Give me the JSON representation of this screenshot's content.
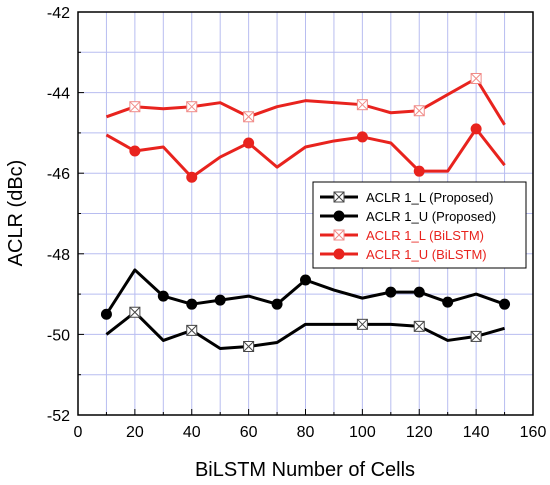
{
  "chart_data": {
    "type": "line",
    "xlabel": "BiLSTM Number of Cells",
    "ylabel": "ACLR (dBc)",
    "xlim": [
      0,
      160
    ],
    "ylim": [
      -52,
      -42
    ],
    "xticks": [
      0,
      20,
      40,
      60,
      80,
      100,
      120,
      140,
      160
    ],
    "yticks": [
      -42,
      -44,
      -46,
      -48,
      -50,
      -52
    ],
    "xtick_labels": [
      "0",
      "20",
      "40",
      "60",
      "80",
      "100",
      "120",
      "140",
      "160"
    ],
    "ytick_labels": [
      "-42",
      "-44",
      "-46",
      "-48",
      "-50",
      "-52"
    ],
    "grid": true,
    "legend_position": "right-center",
    "series": [
      {
        "name": "ACLR 1_L (Proposed)",
        "color": "#000000",
        "marker": "x-square",
        "x": [
          10,
          20,
          30,
          40,
          50,
          60,
          70,
          80,
          90,
          100,
          110,
          120,
          130,
          140,
          150
        ],
        "y": [
          -50.0,
          -49.45,
          -50.15,
          -49.9,
          -50.35,
          -50.3,
          -50.2,
          -49.75,
          -49.75,
          -49.75,
          -49.75,
          -49.8,
          -50.15,
          -50.05,
          -49.85
        ],
        "marker_x": [
          20,
          40,
          60,
          100,
          120,
          140
        ]
      },
      {
        "name": "ACLR 1_U (Proposed)",
        "color": "#000000",
        "marker": "circle",
        "x": [
          10,
          20,
          30,
          40,
          50,
          60,
          70,
          80,
          90,
          100,
          110,
          120,
          130,
          140,
          150
        ],
        "y": [
          -49.5,
          -48.4,
          -49.05,
          -49.25,
          -49.15,
          -49.05,
          -49.25,
          -48.65,
          -48.9,
          -49.1,
          -48.95,
          -48.95,
          -49.2,
          -49.0,
          -49.25
        ],
        "marker_x": [
          10,
          30,
          40,
          50,
          70,
          80,
          110,
          120,
          130,
          150
        ]
      },
      {
        "name": "ACLR 1_L (BiLSTM)",
        "color": "#e8231e",
        "marker": "x-square",
        "x": [
          10,
          20,
          30,
          40,
          50,
          60,
          70,
          80,
          90,
          100,
          110,
          120,
          130,
          140,
          150
        ],
        "y": [
          -44.6,
          -44.35,
          -44.4,
          -44.35,
          -44.25,
          -44.6,
          -44.35,
          -44.2,
          -44.25,
          -44.3,
          -44.5,
          -44.45,
          -44.05,
          -43.65,
          -44.8
        ],
        "marker_x": [
          20,
          40,
          60,
          100,
          120,
          140
        ]
      },
      {
        "name": "ACLR 1_U (BiLSTM)",
        "color": "#e8231e",
        "marker": "circle",
        "x": [
          10,
          20,
          30,
          40,
          50,
          60,
          70,
          80,
          90,
          100,
          110,
          120,
          130,
          140,
          150
        ],
        "y": [
          -45.05,
          -45.45,
          -45.35,
          -46.1,
          -45.6,
          -45.25,
          -45.85,
          -45.35,
          -45.2,
          -45.1,
          -45.25,
          -45.95,
          -45.95,
          -44.9,
          -45.8
        ],
        "marker_x": [
          20,
          40,
          60,
          100,
          120,
          140
        ]
      }
    ]
  }
}
